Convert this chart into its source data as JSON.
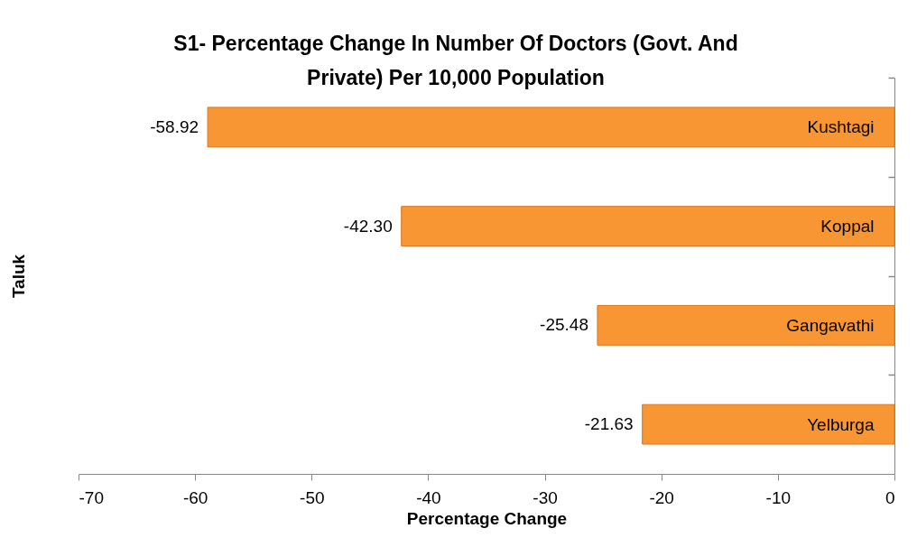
{
  "chart_data": {
    "type": "bar",
    "orientation": "horizontal",
    "title": "S1- Percentage Change In Number Of Doctors (Govt. And Private) Per 10,000 Population",
    "xlabel": "Percentage Change",
    "ylabel": "Taluk",
    "categories": [
      "Kushtagi",
      "Koppal",
      "Gangavathi",
      "Yelburga"
    ],
    "values": [
      -58.92,
      -42.3,
      -25.48,
      -21.63
    ],
    "value_labels": [
      "-58.92",
      "-42.30",
      "-25.48",
      "-21.63"
    ],
    "color": "#f79633",
    "xlim": [
      -70,
      0
    ],
    "xticks": [
      -70,
      -60,
      -50,
      -40,
      -30,
      -20,
      -10,
      0
    ]
  }
}
